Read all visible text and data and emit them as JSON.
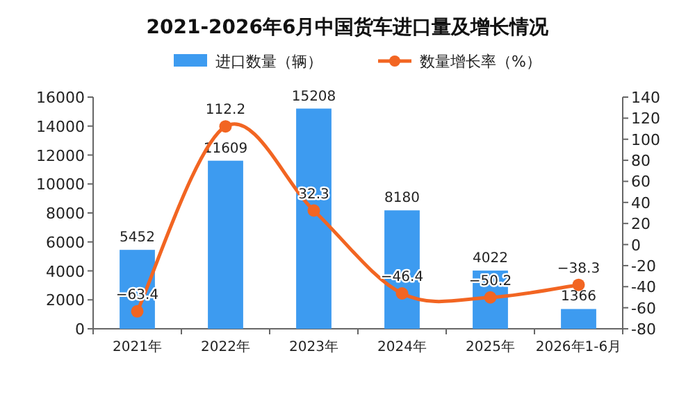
{
  "chart_data": {
    "type": "bar",
    "title": "2021-2026年6月中国货车进口量及增长情况",
    "categories": [
      "2021年",
      "2022年",
      "2023年",
      "2024年",
      "2025年",
      "2026年1-6月"
    ],
    "series": [
      {
        "name": "进口数量（辆）",
        "color": "#3d9bf0",
        "values": [
          5452,
          11609,
          15208,
          8180,
          4022,
          1366
        ]
      },
      {
        "name": "数量增长率（%）",
        "type": "line",
        "axis": "y2",
        "color": "#f26522",
        "marker": "circle",
        "values": [
          -63.4,
          112.2,
          32.3,
          -46.4,
          -50.2,
          -38.3
        ]
      }
    ],
    "ylim": [
      0,
      16000
    ],
    "yticks": [
      0,
      2000,
      4000,
      6000,
      8000,
      10000,
      12000,
      14000,
      16000
    ],
    "y2lim": [
      -80,
      140
    ],
    "y2ticks": [
      -80,
      -60,
      -40,
      -20,
      0,
      20,
      40,
      60,
      80,
      100,
      120,
      140
    ],
    "data_labels": true,
    "legend": "top",
    "grid": false
  }
}
